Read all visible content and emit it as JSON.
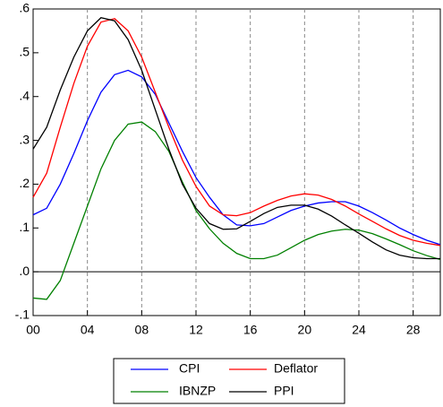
{
  "chart_data": {
    "type": "line",
    "x": [
      0,
      1,
      2,
      3,
      4,
      5,
      6,
      7,
      8,
      9,
      10,
      11,
      12,
      13,
      14,
      15,
      16,
      17,
      18,
      19,
      20,
      21,
      22,
      23,
      24,
      25,
      26,
      27,
      28,
      29,
      30
    ],
    "series": [
      {
        "name": "CPI",
        "color": "#0000ff",
        "values": [
          0.13,
          0.145,
          0.2,
          0.27,
          0.345,
          0.41,
          0.45,
          0.46,
          0.445,
          0.405,
          0.34,
          0.275,
          0.215,
          0.17,
          0.13,
          0.107,
          0.105,
          0.11,
          0.125,
          0.14,
          0.15,
          0.157,
          0.16,
          0.16,
          0.15,
          0.135,
          0.118,
          0.1,
          0.085,
          0.072,
          0.062
        ]
      },
      {
        "name": "Deflator",
        "color": "#ff0000",
        "values": [
          0.17,
          0.225,
          0.33,
          0.43,
          0.515,
          0.57,
          0.578,
          0.55,
          0.49,
          0.41,
          0.33,
          0.255,
          0.195,
          0.15,
          0.13,
          0.128,
          0.135,
          0.15,
          0.163,
          0.173,
          0.178,
          0.175,
          0.165,
          0.15,
          0.132,
          0.115,
          0.098,
          0.083,
          0.072,
          0.065,
          0.06
        ]
      },
      {
        "name": "IBNZP",
        "color": "#008000",
        "values": [
          -0.06,
          -0.063,
          -0.02,
          0.065,
          0.15,
          0.235,
          0.3,
          0.337,
          0.342,
          0.32,
          0.275,
          0.205,
          0.14,
          0.098,
          0.065,
          0.042,
          0.03,
          0.03,
          0.038,
          0.055,
          0.072,
          0.085,
          0.093,
          0.097,
          0.095,
          0.087,
          0.075,
          0.062,
          0.048,
          0.037,
          0.028
        ]
      },
      {
        "name": "PPI",
        "color": "#000000",
        "values": [
          0.28,
          0.33,
          0.415,
          0.49,
          0.55,
          0.58,
          0.573,
          0.53,
          0.46,
          0.37,
          0.28,
          0.2,
          0.145,
          0.11,
          0.097,
          0.098,
          0.115,
          0.133,
          0.147,
          0.152,
          0.152,
          0.143,
          0.127,
          0.107,
          0.088,
          0.068,
          0.05,
          0.038,
          0.032,
          0.03,
          0.03
        ]
      }
    ],
    "xlim": [
      0,
      30
    ],
    "xticks": [
      {
        "value": 0,
        "label": "00"
      },
      {
        "value": 4,
        "label": "04"
      },
      {
        "value": 8,
        "label": "08"
      },
      {
        "value": 12,
        "label": "12"
      },
      {
        "value": 16,
        "label": "16"
      },
      {
        "value": 20,
        "label": "20"
      },
      {
        "value": 24,
        "label": "24"
      },
      {
        "value": 28,
        "label": "28"
      }
    ],
    "ylim": [
      -0.1,
      0.6
    ],
    "yticks": [
      {
        "value": -0.1,
        "label": "-.1"
      },
      {
        "value": 0,
        "label": ".0"
      },
      {
        "value": 0.1,
        "label": ".1"
      },
      {
        "value": 0.2,
        "label": ".2"
      },
      {
        "value": 0.3,
        "label": ".3"
      },
      {
        "value": 0.4,
        "label": ".4"
      },
      {
        "value": 0.5,
        "label": ".5"
      },
      {
        "value": 0.6,
        "label": ".6"
      }
    ],
    "grid": true,
    "legend": "bottom"
  }
}
